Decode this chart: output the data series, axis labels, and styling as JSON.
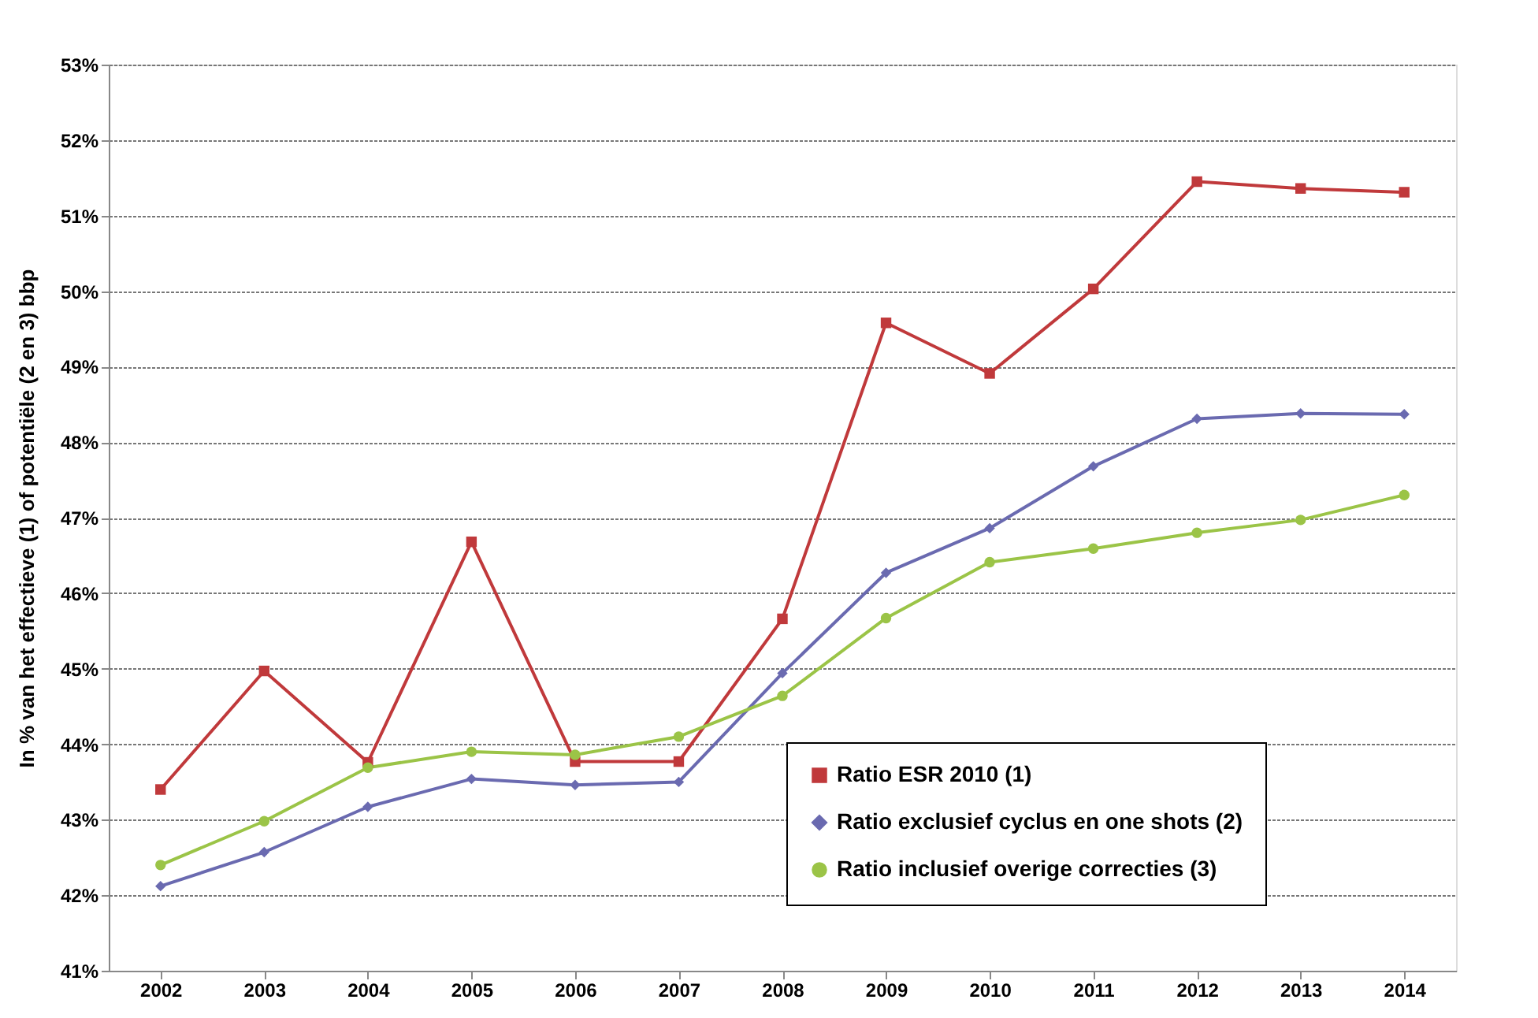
{
  "chart_data": {
    "type": "line",
    "ylabel": "In % van het effectieve (1) of potentiële (2 en 3) bbp",
    "categories": [
      "2002",
      "2003",
      "2004",
      "2005",
      "2006",
      "2007",
      "2008",
      "2009",
      "2010",
      "2011",
      "2012",
      "2013",
      "2014"
    ],
    "series": [
      {
        "name": "Ratio ESR 2010 (1)",
        "color": "#c0393b",
        "marker": "square",
        "values": [
          43.4,
          44.97,
          43.76,
          46.68,
          43.77,
          43.77,
          45.66,
          49.58,
          48.91,
          50.03,
          51.45,
          51.36,
          51.31
        ]
      },
      {
        "name": "Ratio exclusief cyclus en one shots (2)",
        "color": "#6a6ab0",
        "marker": "diamond",
        "values": [
          42.12,
          42.57,
          43.17,
          43.54,
          43.46,
          43.5,
          44.94,
          46.27,
          46.86,
          47.68,
          48.31,
          48.38,
          48.37
        ]
      },
      {
        "name": "Ratio inclusief overige correcties (3)",
        "color": "#9bc447",
        "marker": "circle",
        "values": [
          42.4,
          42.98,
          43.69,
          43.9,
          43.86,
          44.1,
          44.64,
          45.67,
          46.41,
          46.59,
          46.8,
          46.97,
          47.3
        ]
      }
    ],
    "ylim": [
      41,
      53
    ],
    "yticks": [
      {
        "value": 41,
        "label": "41%"
      },
      {
        "value": 42,
        "label": "42%"
      },
      {
        "value": 43,
        "label": "43%"
      },
      {
        "value": 44,
        "label": "44%"
      },
      {
        "value": 45,
        "label": "45%"
      },
      {
        "value": 46,
        "label": "46%"
      },
      {
        "value": 47,
        "label": "47%"
      },
      {
        "value": 48,
        "label": "48%"
      },
      {
        "value": 49,
        "label": "49%"
      },
      {
        "value": 50,
        "label": "50%"
      },
      {
        "value": 51,
        "label": "51%"
      },
      {
        "value": 52,
        "label": "52%"
      },
      {
        "value": 53,
        "label": "53%"
      }
    ],
    "grid": "y",
    "legend": "bottom right",
    "line_style": "solid"
  }
}
